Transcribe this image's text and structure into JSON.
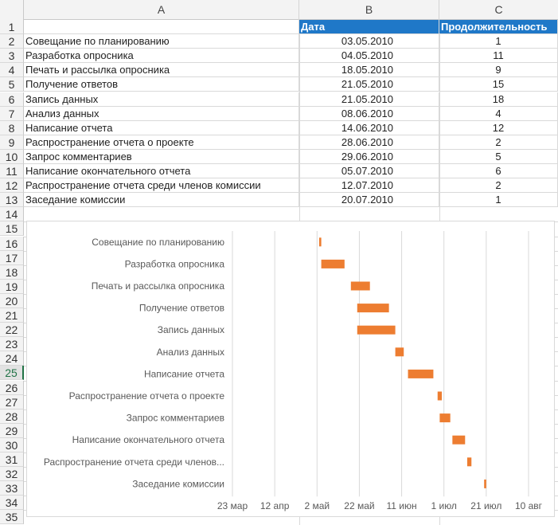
{
  "columns": [
    "A",
    "B",
    "C"
  ],
  "rows": [
    "1",
    "2",
    "3",
    "4",
    "5",
    "6",
    "7",
    "8",
    "9",
    "10",
    "11",
    "12",
    "13",
    "14",
    "15",
    "16",
    "17",
    "18",
    "19",
    "20",
    "21",
    "22",
    "23",
    "24",
    "25",
    "26",
    "27",
    "28",
    "29",
    "30",
    "31",
    "32",
    "33",
    "34",
    "35"
  ],
  "active_row": "25",
  "table": {
    "headers": {
      "name": "",
      "date": "Дата",
      "duration": "Продолжительность"
    },
    "tasks": [
      {
        "name": "Совещание по планированию",
        "date": "03.05.2010",
        "duration": "1"
      },
      {
        "name": "Разработка опросника",
        "date": "04.05.2010",
        "duration": "11"
      },
      {
        "name": "Печать и рассылка опросника",
        "date": "18.05.2010",
        "duration": "9"
      },
      {
        "name": "Получение ответов",
        "date": "21.05.2010",
        "duration": "15"
      },
      {
        "name": "Запись данных",
        "date": "21.05.2010",
        "duration": "18"
      },
      {
        "name": "Анализ данных",
        "date": "08.06.2010",
        "duration": "4"
      },
      {
        "name": "Написание отчета",
        "date": "14.06.2010",
        "duration": "12"
      },
      {
        "name": "Распространение отчета о проекте",
        "date": "28.06.2010",
        "duration": "2"
      },
      {
        "name": "Запрос комментариев",
        "date": "29.06.2010",
        "duration": "5"
      },
      {
        "name": "Написание окончательного отчета",
        "date": "05.07.2010",
        "duration": "6"
      },
      {
        "name": "Распространение отчета среди членов комиссии",
        "date": "12.07.2010",
        "duration": "2"
      },
      {
        "name": "Заседание комиссии",
        "date": "20.07.2010",
        "duration": "1"
      }
    ]
  },
  "chart_data": {
    "type": "bar",
    "orientation": "horizontal-gantt",
    "categories": [
      "Совещание по планированию",
      "Разработка опросника",
      "Печать и рассылка опросника",
      "Получение ответов",
      "Запись данных",
      "Анализ данных",
      "Написание отчета",
      "Распространение отчета о проекте",
      "Запрос комментариев",
      "Написание окончательного отчета",
      "Распространение отчета среди членов...",
      "Заседание комиссии"
    ],
    "start": [
      "2010-05-03",
      "2010-05-04",
      "2010-05-18",
      "2010-05-21",
      "2010-05-21",
      "2010-06-08",
      "2010-06-14",
      "2010-06-28",
      "2010-06-29",
      "2010-07-05",
      "2010-07-12",
      "2010-07-20"
    ],
    "duration_days": [
      1,
      11,
      9,
      15,
      18,
      4,
      12,
      2,
      5,
      6,
      2,
      1
    ],
    "xlim": [
      "2010-03-23",
      "2010-08-10"
    ],
    "x_ticks": [
      "23 мар",
      "12 апр",
      "2 май",
      "22 май",
      "11 июн",
      "1 июл",
      "21 июл",
      "10 авг"
    ],
    "x_tick_dates": [
      "2010-03-23",
      "2010-04-12",
      "2010-05-02",
      "2010-05-22",
      "2010-06-11",
      "2010-07-01",
      "2010-07-21",
      "2010-08-10"
    ],
    "bar_color": "#ed7d31",
    "grid": true,
    "legend": "none"
  }
}
